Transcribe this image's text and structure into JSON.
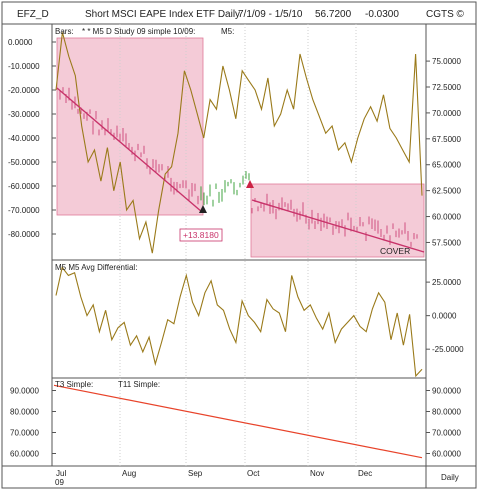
{
  "header": {
    "symbol": "EFZ_D",
    "title": "Short MSCI EAPE Index ETF Daily",
    "range": "7/1/09 - 1/5/10",
    "last": "56.7200",
    "change": "-0.0300",
    "vendor": "CGTS ©"
  },
  "colors": {
    "frame": "#555555",
    "price": "#9a7a1a",
    "trend": "#c8336a",
    "zone_fill": "#f4cbd7",
    "zone_stroke": "#e07a98",
    "t11": "#e8432a",
    "t3": "#2a2a9a",
    "bar_pink": "#cc4477",
    "bar_green": "#2c9a2c",
    "grid": "#cfcfcf"
  },
  "chart_data": [
    {
      "panel": "price",
      "type": "line",
      "legend": [
        "Bars:",
        "* * M5 D Study 09 simple 10/09:",
        "M5:"
      ],
      "left_axis": {
        "ticks": [
          "0.0000",
          "-10.0000",
          "-20.0000",
          "-30.0000",
          "-40.0000",
          "-50.0000",
          "-60.0000",
          "-70.0000",
          "-80.0000"
        ],
        "range": [
          -90,
          5
        ]
      },
      "right_axis": {
        "ticks": [
          "75.0000",
          "72.5000",
          "70.0000",
          "67.5000",
          "65.0000",
          "62.5000",
          "60.0000",
          "57.5000"
        ],
        "range": [
          56,
          78
        ]
      },
      "x_labels": [
        "Jul",
        "Aug",
        "Sep",
        "Oct",
        "Nov",
        "Dec"
      ],
      "x_sublabel": "09",
      "right_footer": "Daily",
      "annotations": [
        "+13.8180",
        "COVER"
      ],
      "study_line": [
        -20,
        4,
        -6,
        -14,
        -35,
        -50,
        -45,
        -58,
        -44,
        -62,
        -50,
        -70,
        -66,
        -82,
        -75,
        -88,
        -70,
        -55,
        -52,
        -38,
        -12,
        -20,
        -30,
        -40,
        -24,
        -28,
        -10,
        -20,
        -32,
        -12,
        -16,
        -20,
        -28,
        -15,
        -35,
        -30,
        -20,
        -28,
        -5,
        -15,
        -24,
        -31,
        -38,
        -35,
        -45,
        -42,
        -50,
        -40,
        -32,
        -27,
        -33,
        -22,
        -36,
        -40,
        -45,
        -50,
        -5,
        -64
      ]
    },
    {
      "panel": "oscillator",
      "type": "line",
      "legend": [
        "M5 M5 Avg Differential:"
      ],
      "right_axis": {
        "ticks": [
          "25.0000",
          "0.0000",
          "-25.0000"
        ],
        "range": [
          -45,
          40
        ]
      },
      "values": [
        15,
        36,
        30,
        32,
        14,
        0,
        8,
        -12,
        4,
        -18,
        -9,
        -5,
        -22,
        -15,
        -27,
        -16,
        -36,
        -20,
        -3,
        -6,
        14,
        30,
        10,
        0,
        17,
        26,
        8,
        4,
        -10,
        -20,
        11,
        0,
        -5,
        -12,
        12,
        5,
        2,
        -12,
        30,
        14,
        4,
        8,
        -2,
        -10,
        2,
        -20,
        -10,
        -5,
        0,
        -8,
        -12,
        5,
        17,
        10,
        -18,
        2,
        -22,
        1,
        -45,
        -40
      ]
    },
    {
      "panel": "moving-averages",
      "type": "line",
      "legend": [
        "T3 Simple:",
        "T11 Simple:"
      ],
      "left_axis": {
        "ticks": [
          "90.0000",
          "80.0000",
          "70.0000",
          "60.0000"
        ],
        "range": [
          55,
          95
        ]
      },
      "right_axis": {
        "ticks": [
          "90.0000",
          "80.0000",
          "70.0000",
          "60.0000"
        ],
        "range": [
          55,
          95
        ]
      },
      "series": [
        {
          "name": "T11 Simple:",
          "x": [
            0,
            1
          ],
          "values": [
            92.5,
            58
          ]
        }
      ]
    }
  ]
}
